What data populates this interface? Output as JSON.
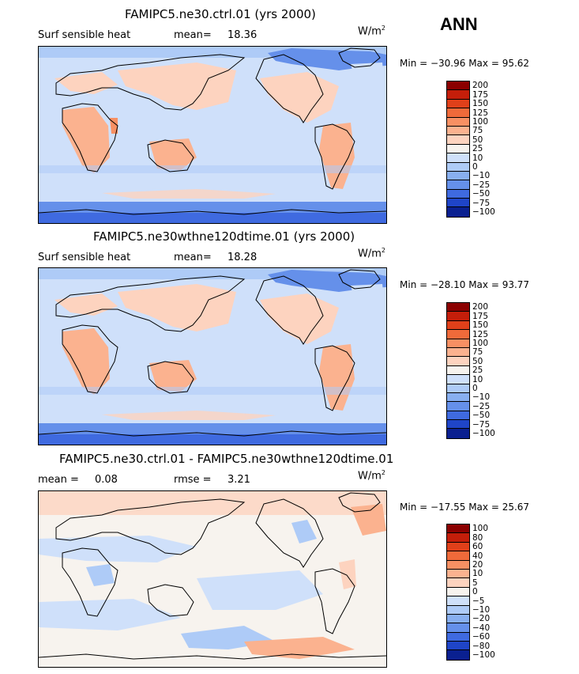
{
  "season": "ANN",
  "units_main": "W/m",
  "units_sup": "2",
  "panels": [
    {
      "title": "FAMIPC5.ne30.ctrl.01 (yrs 2000)",
      "field": "Surf sensible heat",
      "stat_label": "mean=",
      "stat_value": "18.36",
      "minmax": "Min = −30.96 Max =  95.62",
      "levels": [
        "200",
        "175",
        "150",
        "125",
        "100",
        "75",
        "50",
        "25",
        "10",
        "0",
        "−10",
        "−25",
        "−50",
        "−75",
        "−100"
      ]
    },
    {
      "title": "FAMIPC5.ne30wthne120dtime.01 (yrs 2000)",
      "field": "Surf sensible heat",
      "stat_label": "mean=",
      "stat_value": "18.28",
      "minmax": "Min = −28.10 Max =  93.77",
      "levels": [
        "200",
        "175",
        "150",
        "125",
        "100",
        "75",
        "50",
        "25",
        "10",
        "0",
        "−10",
        "−25",
        "−50",
        "−75",
        "−100"
      ]
    },
    {
      "title": "FAMIPC5.ne30.ctrl.01 - FAMIPC5.ne30wthne120dtime.01",
      "field": "mean =",
      "stat_label": "0.08",
      "stat_value": "rmse =",
      "stat_value2": "3.21",
      "minmax": "Min = −17.55 Max =  25.67",
      "levels": [
        "100",
        "80",
        "60",
        "40",
        "20",
        "10",
        "5",
        "0",
        "−5",
        "−10",
        "−20",
        "−40",
        "−60",
        "−80",
        "−100"
      ]
    }
  ],
  "colors": [
    "#8b0000",
    "#c41e0a",
    "#e0401a",
    "#ef6a3a",
    "#f79063",
    "#fbb28f",
    "#fdd3bf",
    "#f7f3ee",
    "#cfe0fa",
    "#aecbf7",
    "#88aff0",
    "#6590ea",
    "#3f6ae0",
    "#1f45c8",
    "#0a2090"
  ]
}
